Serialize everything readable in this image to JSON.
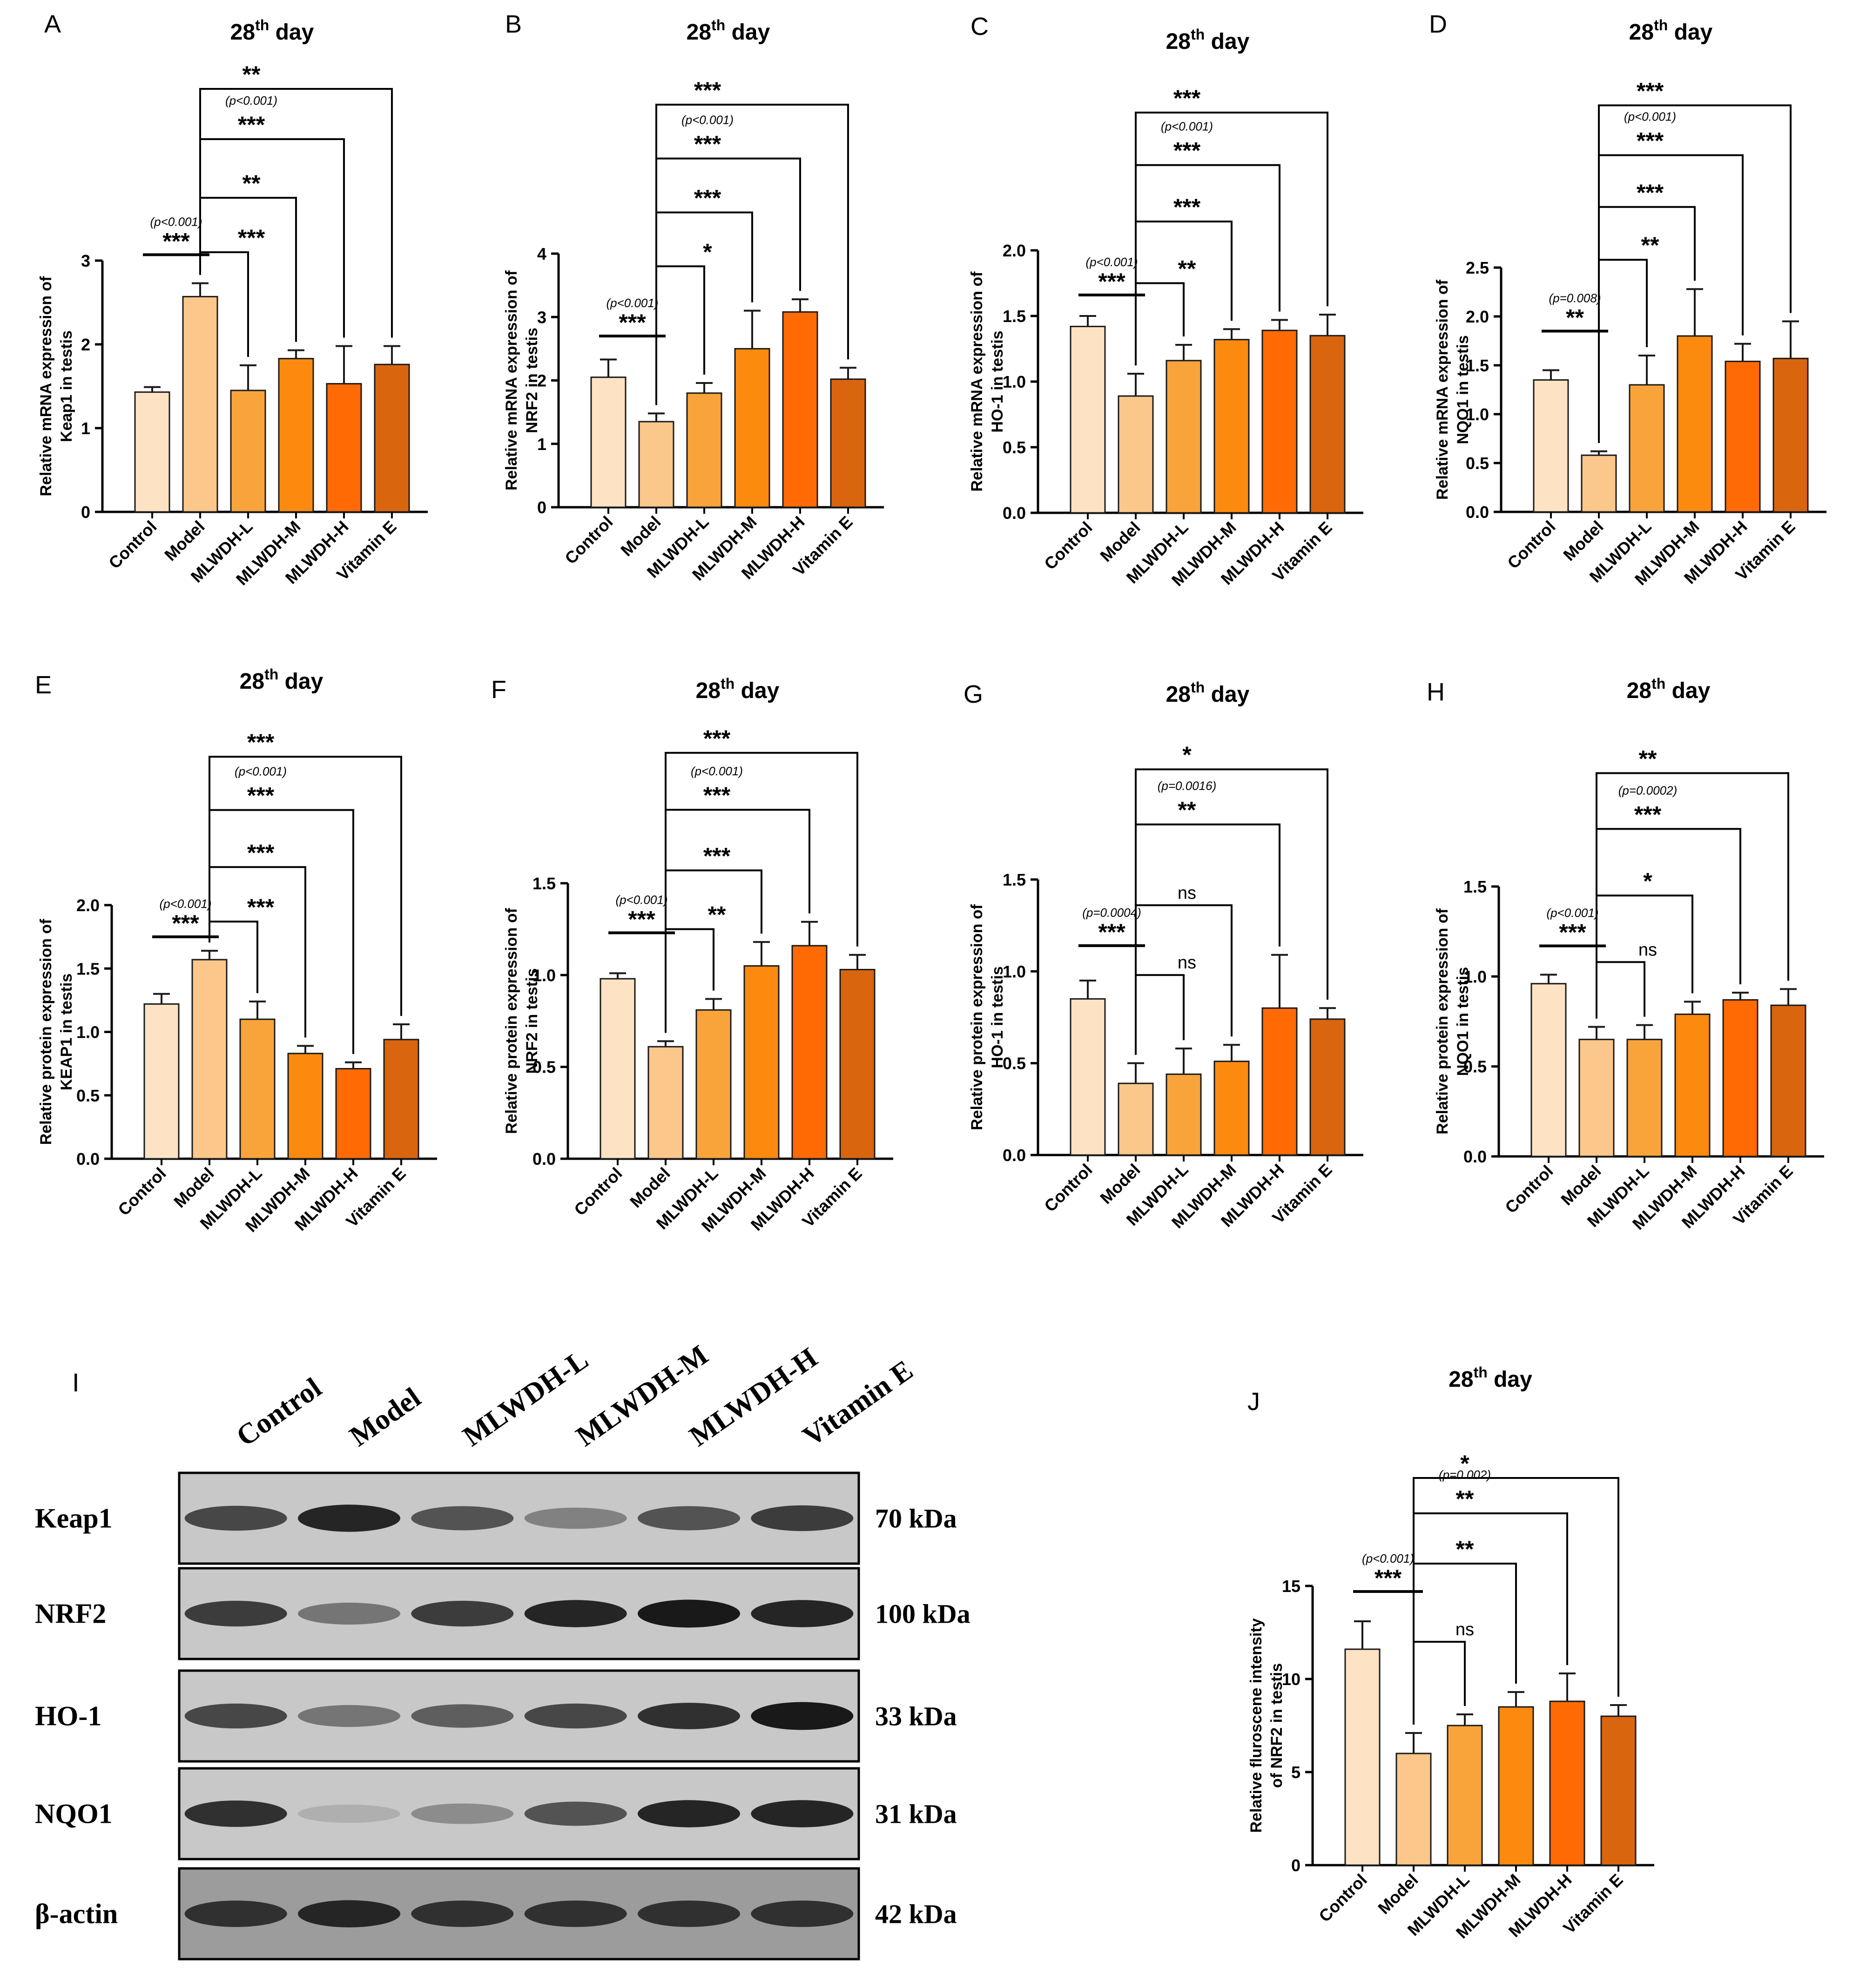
{
  "palette": [
    "#fde3c4",
    "#fbc78a",
    "#f9a43b",
    "#fb8a0f",
    "#ff6a05",
    "#d9650f"
  ],
  "title_main": "28",
  "title_sup": "th",
  "title_tail": " day",
  "groups": [
    "Control",
    "Model",
    "MLWDH-L",
    "MLWDH-M",
    "MLWDH-H",
    "Vitamin E"
  ],
  "chart_data": [
    {
      "type": "bar",
      "letter": "A",
      "ylabel1": "Relative mRNA expression of",
      "ylabel2": "Keap1 in testis",
      "ylim": [
        0,
        3
      ],
      "ticks": [
        "0",
        "1",
        "2",
        "3"
      ],
      "tick_values": [
        0,
        1,
        2,
        3
      ],
      "values": [
        1.43,
        2.57,
        1.45,
        1.83,
        1.53,
        1.76
      ],
      "errors": [
        0.06,
        0.16,
        0.3,
        0.1,
        0.45,
        0.22
      ],
      "sig": [
        {
          "from": 0,
          "to": 1,
          "stars": "***",
          "p": "(p<0.001)",
          "type": "line",
          "y": 3.07
        },
        {
          "from": 1,
          "to": 2,
          "stars": "***",
          "type": "bracket",
          "y": 3.1
        },
        {
          "from": 1,
          "to": 3,
          "stars": "**",
          "type": "bracket",
          "y": 3.75
        },
        {
          "from": 1,
          "to": 4,
          "stars": "***",
          "p": "(p<0.001)",
          "type": "bracket",
          "y": 4.45
        },
        {
          "from": 1,
          "to": 5,
          "stars": "**",
          "type": "bracket",
          "y": 5.05
        }
      ]
    },
    {
      "type": "bar",
      "letter": "B",
      "ylabel1": "Relative mRNA expression of",
      "ylabel2": "NRF2 in testis",
      "ylim": [
        0,
        4
      ],
      "ticks": [
        "0",
        "1",
        "2",
        "3",
        "4"
      ],
      "tick_values": [
        0,
        1,
        2,
        3,
        4
      ],
      "values": [
        2.05,
        1.35,
        1.8,
        2.5,
        3.08,
        2.02
      ],
      "errors": [
        0.28,
        0.13,
        0.16,
        0.6,
        0.2,
        0.18
      ],
      "sig": [
        {
          "from": 0,
          "to": 1,
          "stars": "***",
          "p": "(p<0.001)",
          "type": "line",
          "y": 2.7
        },
        {
          "from": 1,
          "to": 2,
          "stars": "*",
          "type": "bracket",
          "y": 3.8
        },
        {
          "from": 1,
          "to": 3,
          "stars": "***",
          "type": "bracket",
          "y": 4.65
        },
        {
          "from": 1,
          "to": 4,
          "stars": "***",
          "p": "(p<0.001)",
          "type": "bracket",
          "y": 5.5
        },
        {
          "from": 1,
          "to": 5,
          "stars": "***",
          "type": "bracket",
          "y": 6.35
        }
      ]
    },
    {
      "type": "bar",
      "letter": "C",
      "ylabel1": "Relative mRNA expression of",
      "ylabel2": "HO-1 in testis",
      "ylim": [
        0,
        2.0
      ],
      "ticks": [
        "0.0",
        "0.5",
        "1.0",
        "1.5",
        "2.0"
      ],
      "tick_values": [
        0,
        0.5,
        1,
        1.5,
        2
      ],
      "values": [
        1.42,
        0.89,
        1.16,
        1.32,
        1.39,
        1.35
      ],
      "errors": [
        0.08,
        0.17,
        0.12,
        0.08,
        0.08,
        0.16
      ],
      "sig": [
        {
          "from": 0,
          "to": 1,
          "stars": "***",
          "p": "(p<0.001)",
          "type": "line",
          "y": 1.66
        },
        {
          "from": 1,
          "to": 2,
          "stars": "**",
          "type": "bracket",
          "y": 1.75
        },
        {
          "from": 1,
          "to": 3,
          "stars": "***",
          "type": "bracket",
          "y": 2.22
        },
        {
          "from": 1,
          "to": 4,
          "stars": "***",
          "p": "(p<0.001)",
          "type": "bracket",
          "y": 2.65
        },
        {
          "from": 1,
          "to": 5,
          "stars": "***",
          "type": "bracket",
          "y": 3.05
        }
      ]
    },
    {
      "type": "bar",
      "letter": "D",
      "ylabel1": "Relative mRNA expression of",
      "ylabel2": "NQO1 in testis",
      "ylim": [
        0,
        2.5
      ],
      "ticks": [
        "0.0",
        "0.5",
        "1.0",
        "1.5",
        "2.0",
        "2.5"
      ],
      "tick_values": [
        0,
        0.5,
        1,
        1.5,
        2,
        2.5
      ],
      "values": [
        1.35,
        0.58,
        1.3,
        1.8,
        1.54,
        1.57
      ],
      "errors": [
        0.1,
        0.04,
        0.3,
        0.48,
        0.18,
        0.38
      ],
      "sig": [
        {
          "from": 0,
          "to": 1,
          "stars": "**",
          "p": "(p=0.008)",
          "type": "line",
          "y": 1.85
        },
        {
          "from": 1,
          "to": 2,
          "stars": "**",
          "type": "bracket",
          "y": 2.58
        },
        {
          "from": 1,
          "to": 3,
          "stars": "***",
          "type": "bracket",
          "y": 3.12
        },
        {
          "from": 1,
          "to": 4,
          "stars": "***",
          "p": "(p<0.001)",
          "type": "bracket",
          "y": 3.65
        },
        {
          "from": 1,
          "to": 5,
          "stars": "***",
          "type": "bracket",
          "y": 4.16
        }
      ]
    },
    {
      "type": "bar",
      "letter": "E",
      "ylabel1": "Relative protein expression of",
      "ylabel2": "KEAP1 in testis",
      "ylim": [
        0,
        2.0
      ],
      "ticks": [
        "0.0",
        "0.5",
        "1.0",
        "1.5",
        "2.0"
      ],
      "tick_values": [
        0,
        0.5,
        1,
        1.5,
        2
      ],
      "values": [
        1.22,
        1.57,
        1.1,
        0.83,
        0.71,
        0.94
      ],
      "errors": [
        0.08,
        0.07,
        0.14,
        0.06,
        0.05,
        0.12
      ],
      "sig": [
        {
          "from": 0,
          "to": 1,
          "stars": "***",
          "p": "(p<0.001)",
          "type": "line",
          "y": 1.75
        },
        {
          "from": 1,
          "to": 2,
          "stars": "***",
          "type": "bracket",
          "y": 1.87
        },
        {
          "from": 1,
          "to": 3,
          "stars": "***",
          "type": "bracket",
          "y": 2.3
        },
        {
          "from": 1,
          "to": 4,
          "stars": "***",
          "p": "(p<0.001)",
          "type": "bracket",
          "y": 2.75
        },
        {
          "from": 1,
          "to": 5,
          "stars": "***",
          "type": "bracket",
          "y": 3.17
        }
      ]
    },
    {
      "type": "bar",
      "letter": "F",
      "ylabel1": "Relative protein expression of",
      "ylabel2": "NRF2 in testis",
      "ylim": [
        0,
        1.5
      ],
      "ticks": [
        "0.0",
        "0.5",
        "1.0",
        "1.5"
      ],
      "tick_values": [
        0,
        0.5,
        1,
        1.5
      ],
      "values": [
        0.98,
        0.61,
        0.81,
        1.05,
        1.16,
        1.03
      ],
      "errors": [
        0.03,
        0.03,
        0.06,
        0.13,
        0.13,
        0.08
      ],
      "sig": [
        {
          "from": 0,
          "to": 1,
          "stars": "***",
          "p": "(p<0.001)",
          "type": "line",
          "y": 1.23
        },
        {
          "from": 1,
          "to": 2,
          "stars": "**",
          "type": "bracket",
          "y": 1.25
        },
        {
          "from": 1,
          "to": 3,
          "stars": "***",
          "type": "bracket",
          "y": 1.57
        },
        {
          "from": 1,
          "to": 4,
          "stars": "***",
          "p": "(p<0.001)",
          "type": "bracket",
          "y": 1.9
        },
        {
          "from": 1,
          "to": 5,
          "stars": "***",
          "type": "bracket",
          "y": 2.21
        }
      ]
    },
    {
      "type": "bar",
      "letter": "G",
      "ylabel1": "Relative protein expression of",
      "ylabel2": "HO-1 in testis",
      "ylim": [
        0,
        1.5
      ],
      "ticks": [
        "0.0",
        "0.5",
        "1.0",
        "1.5"
      ],
      "tick_values": [
        0,
        0.5,
        1,
        1.5
      ],
      "values": [
        0.85,
        0.39,
        0.44,
        0.51,
        0.8,
        0.74
      ],
      "errors": [
        0.1,
        0.11,
        0.14,
        0.09,
        0.29,
        0.06
      ],
      "sig": [
        {
          "from": 0,
          "to": 1,
          "stars": "***",
          "p": "(p=0.0004)",
          "type": "line",
          "y": 1.14
        },
        {
          "from": 1,
          "to": 2,
          "stars": "ns",
          "type": "bracket",
          "y": 0.98
        },
        {
          "from": 1,
          "to": 3,
          "stars": "ns",
          "type": "bracket",
          "y": 1.36
        },
        {
          "from": 1,
          "to": 4,
          "stars": "**",
          "p": "(p=0.0016)",
          "type": "bracket",
          "y": 1.8
        },
        {
          "from": 1,
          "to": 5,
          "stars": "*",
          "type": "bracket",
          "y": 2.1
        }
      ]
    },
    {
      "type": "bar",
      "letter": "H",
      "ylabel1": "Relative protein expression of",
      "ylabel2": "NQO1 in testis",
      "ylim": [
        0,
        1.5
      ],
      "ticks": [
        "0.0",
        "0.5",
        "1.0",
        "1.5"
      ],
      "tick_values": [
        0,
        0.5,
        1,
        1.5
      ],
      "values": [
        0.96,
        0.65,
        0.65,
        0.79,
        0.87,
        0.84
      ],
      "errors": [
        0.05,
        0.07,
        0.08,
        0.07,
        0.04,
        0.09
      ],
      "sig": [
        {
          "from": 0,
          "to": 1,
          "stars": "***",
          "p": "(p<0.001)",
          "type": "line",
          "y": 1.17
        },
        {
          "from": 1,
          "to": 2,
          "stars": "ns",
          "type": "bracket",
          "y": 1.08
        },
        {
          "from": 1,
          "to": 3,
          "stars": "*",
          "type": "bracket",
          "y": 1.45
        },
        {
          "from": 1,
          "to": 4,
          "stars": "***",
          "p": "(p=0.0002)",
          "type": "bracket",
          "y": 1.82
        },
        {
          "from": 1,
          "to": 5,
          "stars": "**",
          "type": "bracket",
          "y": 2.13
        }
      ]
    },
    {
      "type": "bar",
      "letter": "J",
      "ylabel1": "Relative fluroscene  intensity",
      "ylabel2": "of NRF2 in testis",
      "ylim": [
        0,
        15
      ],
      "ticks": [
        "0",
        "5",
        "10",
        "15"
      ],
      "tick_values": [
        0,
        5,
        10,
        15
      ],
      "values": [
        11.6,
        6.0,
        7.5,
        8.5,
        8.8,
        8.0
      ],
      "errors": [
        1.5,
        1.1,
        0.6,
        0.8,
        1.5,
        0.6
      ],
      "sig": [
        {
          "from": 0,
          "to": 1,
          "stars": "***",
          "p": "(p<0.001)",
          "type": "line",
          "y": 14.7
        },
        {
          "from": 1,
          "to": 2,
          "stars": "ns",
          "type": "bracket",
          "y": 12.0
        },
        {
          "from": 1,
          "to": 3,
          "stars": "**",
          "type": "bracket",
          "y": 16.2
        },
        {
          "from": 1,
          "to": 4,
          "stars": "**",
          "p": "(p=0.002)",
          "type": "bracket",
          "y": 18.9
        },
        {
          "from": 1,
          "to": 5,
          "stars": "*",
          "type": "bracket",
          "y": 20.8
        }
      ]
    }
  ],
  "blot": {
    "letter": "I",
    "lanes": [
      "Control",
      "Model",
      "MLWDH-L",
      "MLWDH-M",
      "MLWDH-H",
      "Vitamin E"
    ],
    "rows": [
      {
        "protein": "Keap1",
        "kda": "70 kDa",
        "intensity": [
          0.8,
          0.95,
          0.75,
          0.55,
          0.75,
          0.85
        ]
      },
      {
        "protein": "NRF2",
        "kda": "100 kDa",
        "intensity": [
          0.85,
          0.6,
          0.85,
          0.95,
          1.0,
          0.95
        ]
      },
      {
        "protein": "HO-1",
        "kda": "33 kDa",
        "intensity": [
          0.8,
          0.6,
          0.7,
          0.8,
          0.9,
          1.0
        ]
      },
      {
        "protein": "NQO1",
        "kda": "31 kDa",
        "intensity": [
          0.9,
          0.35,
          0.5,
          0.75,
          0.95,
          0.95
        ]
      },
      {
        "protein": "β-actin",
        "kda": "42 kDa",
        "intensity": [
          0.9,
          0.95,
          0.9,
          0.9,
          0.9,
          0.9
        ]
      }
    ]
  }
}
